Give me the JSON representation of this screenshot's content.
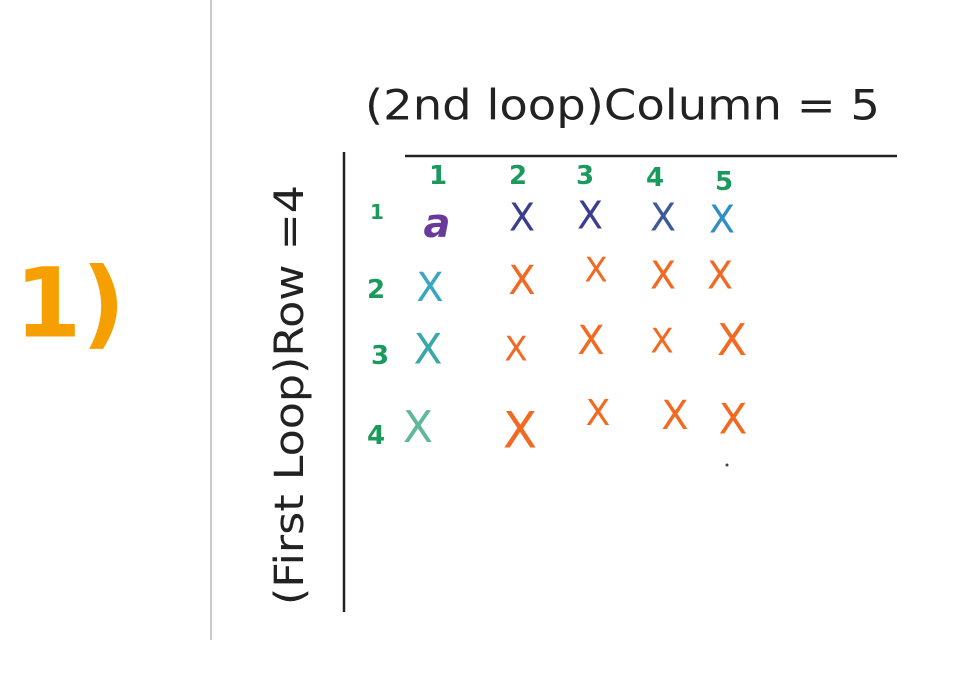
{
  "notes": {
    "step_number": "1)",
    "column_heading": "(2nd loop)Column = 5",
    "row_heading": "(First Loop)Row =4",
    "column_numbers": [
      "1",
      "2",
      "3",
      "4",
      "5"
    ],
    "row_numbers": [
      "1",
      "2",
      "3",
      "4"
    ],
    "cell_mark": "X",
    "first_cell_mark": "a"
  },
  "colors": {
    "step_number": "#f5a000",
    "headings": "#222222",
    "numbers": "#1a9a5c",
    "row1_purple": "#6a3a9a",
    "row1_indigo": "#3d3d8f",
    "row1_blue": "#2f8fc4",
    "column1": "#39a7c4",
    "cells": "#f26a21"
  }
}
